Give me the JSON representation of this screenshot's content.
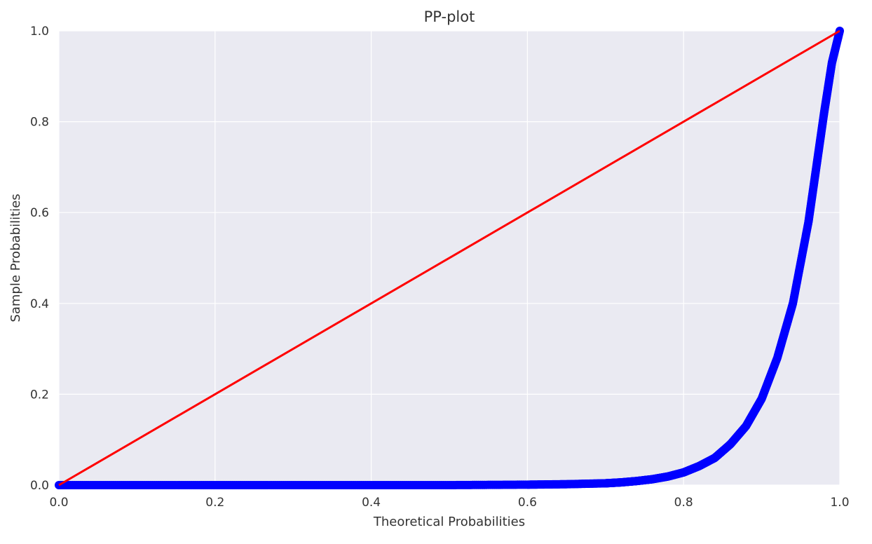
{
  "chart_data": {
    "type": "line",
    "title": "PP-plot",
    "xlabel": "Theoretical Probabilities",
    "ylabel": "Sample Probabilities",
    "xlim": [
      0.0,
      1.0
    ],
    "ylim": [
      0.0,
      1.0
    ],
    "xticks": [
      "0.0",
      "0.2",
      "0.4",
      "0.6",
      "0.8",
      "1.0"
    ],
    "yticks": [
      "0.0",
      "0.2",
      "0.4",
      "0.6",
      "0.8",
      "1.0"
    ],
    "grid": true,
    "background_color": "#eaeaf2",
    "grid_color": "#ffffff",
    "series": [
      {
        "style": "markers",
        "color": "#0000ff",
        "x": [
          0.0,
          0.1,
          0.2,
          0.3,
          0.4,
          0.5,
          0.6,
          0.65,
          0.7,
          0.72,
          0.74,
          0.76,
          0.78,
          0.8,
          0.82,
          0.84,
          0.86,
          0.88,
          0.9,
          0.92,
          0.94,
          0.96,
          0.97,
          0.98,
          0.99,
          1.0
        ],
        "y": [
          0.0,
          0.0,
          0.0,
          0.0,
          0.0,
          0.0,
          0.001,
          0.002,
          0.004,
          0.006,
          0.009,
          0.013,
          0.019,
          0.028,
          0.042,
          0.06,
          0.09,
          0.13,
          0.19,
          0.28,
          0.4,
          0.58,
          0.7,
          0.82,
          0.93,
          1.0
        ]
      },
      {
        "style": "line",
        "color": "#ff0000",
        "x": [
          0.0,
          1.0
        ],
        "y": [
          0.0,
          1.0
        ]
      }
    ]
  }
}
